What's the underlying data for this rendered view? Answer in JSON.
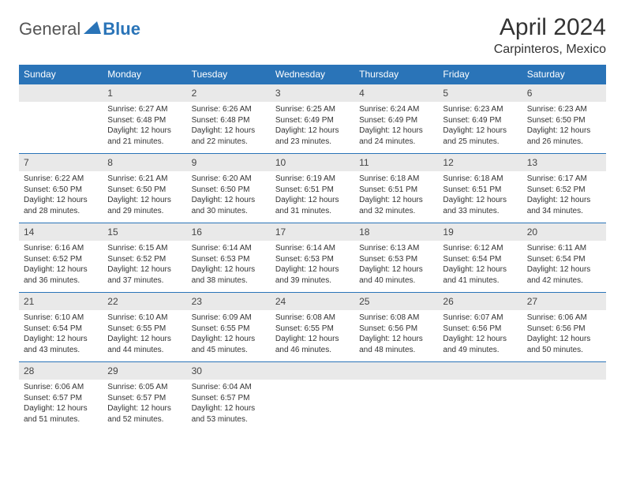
{
  "logo": {
    "general": "General",
    "blue": "Blue"
  },
  "title": "April 2024",
  "location": "Carpinteros, Mexico",
  "colors": {
    "header_bg": "#2a74b8",
    "header_text": "#ffffff",
    "daynum_bg": "#e9e9e9",
    "text": "#333333",
    "row_border": "#2a74b8"
  },
  "fonts": {
    "title_size": 30,
    "location_size": 16,
    "header_size": 12,
    "daynum_size": 12,
    "body_size": 10
  },
  "weekdays": [
    "Sunday",
    "Monday",
    "Tuesday",
    "Wednesday",
    "Thursday",
    "Friday",
    "Saturday"
  ],
  "weeks": [
    [
      null,
      {
        "n": "1",
        "sr": "Sunrise: 6:27 AM",
        "ss": "Sunset: 6:48 PM",
        "d1": "Daylight: 12 hours",
        "d2": "and 21 minutes."
      },
      {
        "n": "2",
        "sr": "Sunrise: 6:26 AM",
        "ss": "Sunset: 6:48 PM",
        "d1": "Daylight: 12 hours",
        "d2": "and 22 minutes."
      },
      {
        "n": "3",
        "sr": "Sunrise: 6:25 AM",
        "ss": "Sunset: 6:49 PM",
        "d1": "Daylight: 12 hours",
        "d2": "and 23 minutes."
      },
      {
        "n": "4",
        "sr": "Sunrise: 6:24 AM",
        "ss": "Sunset: 6:49 PM",
        "d1": "Daylight: 12 hours",
        "d2": "and 24 minutes."
      },
      {
        "n": "5",
        "sr": "Sunrise: 6:23 AM",
        "ss": "Sunset: 6:49 PM",
        "d1": "Daylight: 12 hours",
        "d2": "and 25 minutes."
      },
      {
        "n": "6",
        "sr": "Sunrise: 6:23 AM",
        "ss": "Sunset: 6:50 PM",
        "d1": "Daylight: 12 hours",
        "d2": "and 26 minutes."
      }
    ],
    [
      {
        "n": "7",
        "sr": "Sunrise: 6:22 AM",
        "ss": "Sunset: 6:50 PM",
        "d1": "Daylight: 12 hours",
        "d2": "and 28 minutes."
      },
      {
        "n": "8",
        "sr": "Sunrise: 6:21 AM",
        "ss": "Sunset: 6:50 PM",
        "d1": "Daylight: 12 hours",
        "d2": "and 29 minutes."
      },
      {
        "n": "9",
        "sr": "Sunrise: 6:20 AM",
        "ss": "Sunset: 6:50 PM",
        "d1": "Daylight: 12 hours",
        "d2": "and 30 minutes."
      },
      {
        "n": "10",
        "sr": "Sunrise: 6:19 AM",
        "ss": "Sunset: 6:51 PM",
        "d1": "Daylight: 12 hours",
        "d2": "and 31 minutes."
      },
      {
        "n": "11",
        "sr": "Sunrise: 6:18 AM",
        "ss": "Sunset: 6:51 PM",
        "d1": "Daylight: 12 hours",
        "d2": "and 32 minutes."
      },
      {
        "n": "12",
        "sr": "Sunrise: 6:18 AM",
        "ss": "Sunset: 6:51 PM",
        "d1": "Daylight: 12 hours",
        "d2": "and 33 minutes."
      },
      {
        "n": "13",
        "sr": "Sunrise: 6:17 AM",
        "ss": "Sunset: 6:52 PM",
        "d1": "Daylight: 12 hours",
        "d2": "and 34 minutes."
      }
    ],
    [
      {
        "n": "14",
        "sr": "Sunrise: 6:16 AM",
        "ss": "Sunset: 6:52 PM",
        "d1": "Daylight: 12 hours",
        "d2": "and 36 minutes."
      },
      {
        "n": "15",
        "sr": "Sunrise: 6:15 AM",
        "ss": "Sunset: 6:52 PM",
        "d1": "Daylight: 12 hours",
        "d2": "and 37 minutes."
      },
      {
        "n": "16",
        "sr": "Sunrise: 6:14 AM",
        "ss": "Sunset: 6:53 PM",
        "d1": "Daylight: 12 hours",
        "d2": "and 38 minutes."
      },
      {
        "n": "17",
        "sr": "Sunrise: 6:14 AM",
        "ss": "Sunset: 6:53 PM",
        "d1": "Daylight: 12 hours",
        "d2": "and 39 minutes."
      },
      {
        "n": "18",
        "sr": "Sunrise: 6:13 AM",
        "ss": "Sunset: 6:53 PM",
        "d1": "Daylight: 12 hours",
        "d2": "and 40 minutes."
      },
      {
        "n": "19",
        "sr": "Sunrise: 6:12 AM",
        "ss": "Sunset: 6:54 PM",
        "d1": "Daylight: 12 hours",
        "d2": "and 41 minutes."
      },
      {
        "n": "20",
        "sr": "Sunrise: 6:11 AM",
        "ss": "Sunset: 6:54 PM",
        "d1": "Daylight: 12 hours",
        "d2": "and 42 minutes."
      }
    ],
    [
      {
        "n": "21",
        "sr": "Sunrise: 6:10 AM",
        "ss": "Sunset: 6:54 PM",
        "d1": "Daylight: 12 hours",
        "d2": "and 43 minutes."
      },
      {
        "n": "22",
        "sr": "Sunrise: 6:10 AM",
        "ss": "Sunset: 6:55 PM",
        "d1": "Daylight: 12 hours",
        "d2": "and 44 minutes."
      },
      {
        "n": "23",
        "sr": "Sunrise: 6:09 AM",
        "ss": "Sunset: 6:55 PM",
        "d1": "Daylight: 12 hours",
        "d2": "and 45 minutes."
      },
      {
        "n": "24",
        "sr": "Sunrise: 6:08 AM",
        "ss": "Sunset: 6:55 PM",
        "d1": "Daylight: 12 hours",
        "d2": "and 46 minutes."
      },
      {
        "n": "25",
        "sr": "Sunrise: 6:08 AM",
        "ss": "Sunset: 6:56 PM",
        "d1": "Daylight: 12 hours",
        "d2": "and 48 minutes."
      },
      {
        "n": "26",
        "sr": "Sunrise: 6:07 AM",
        "ss": "Sunset: 6:56 PM",
        "d1": "Daylight: 12 hours",
        "d2": "and 49 minutes."
      },
      {
        "n": "27",
        "sr": "Sunrise: 6:06 AM",
        "ss": "Sunset: 6:56 PM",
        "d1": "Daylight: 12 hours",
        "d2": "and 50 minutes."
      }
    ],
    [
      {
        "n": "28",
        "sr": "Sunrise: 6:06 AM",
        "ss": "Sunset: 6:57 PM",
        "d1": "Daylight: 12 hours",
        "d2": "and 51 minutes."
      },
      {
        "n": "29",
        "sr": "Sunrise: 6:05 AM",
        "ss": "Sunset: 6:57 PM",
        "d1": "Daylight: 12 hours",
        "d2": "and 52 minutes."
      },
      {
        "n": "30",
        "sr": "Sunrise: 6:04 AM",
        "ss": "Sunset: 6:57 PM",
        "d1": "Daylight: 12 hours",
        "d2": "and 53 minutes."
      },
      null,
      null,
      null,
      null
    ]
  ]
}
